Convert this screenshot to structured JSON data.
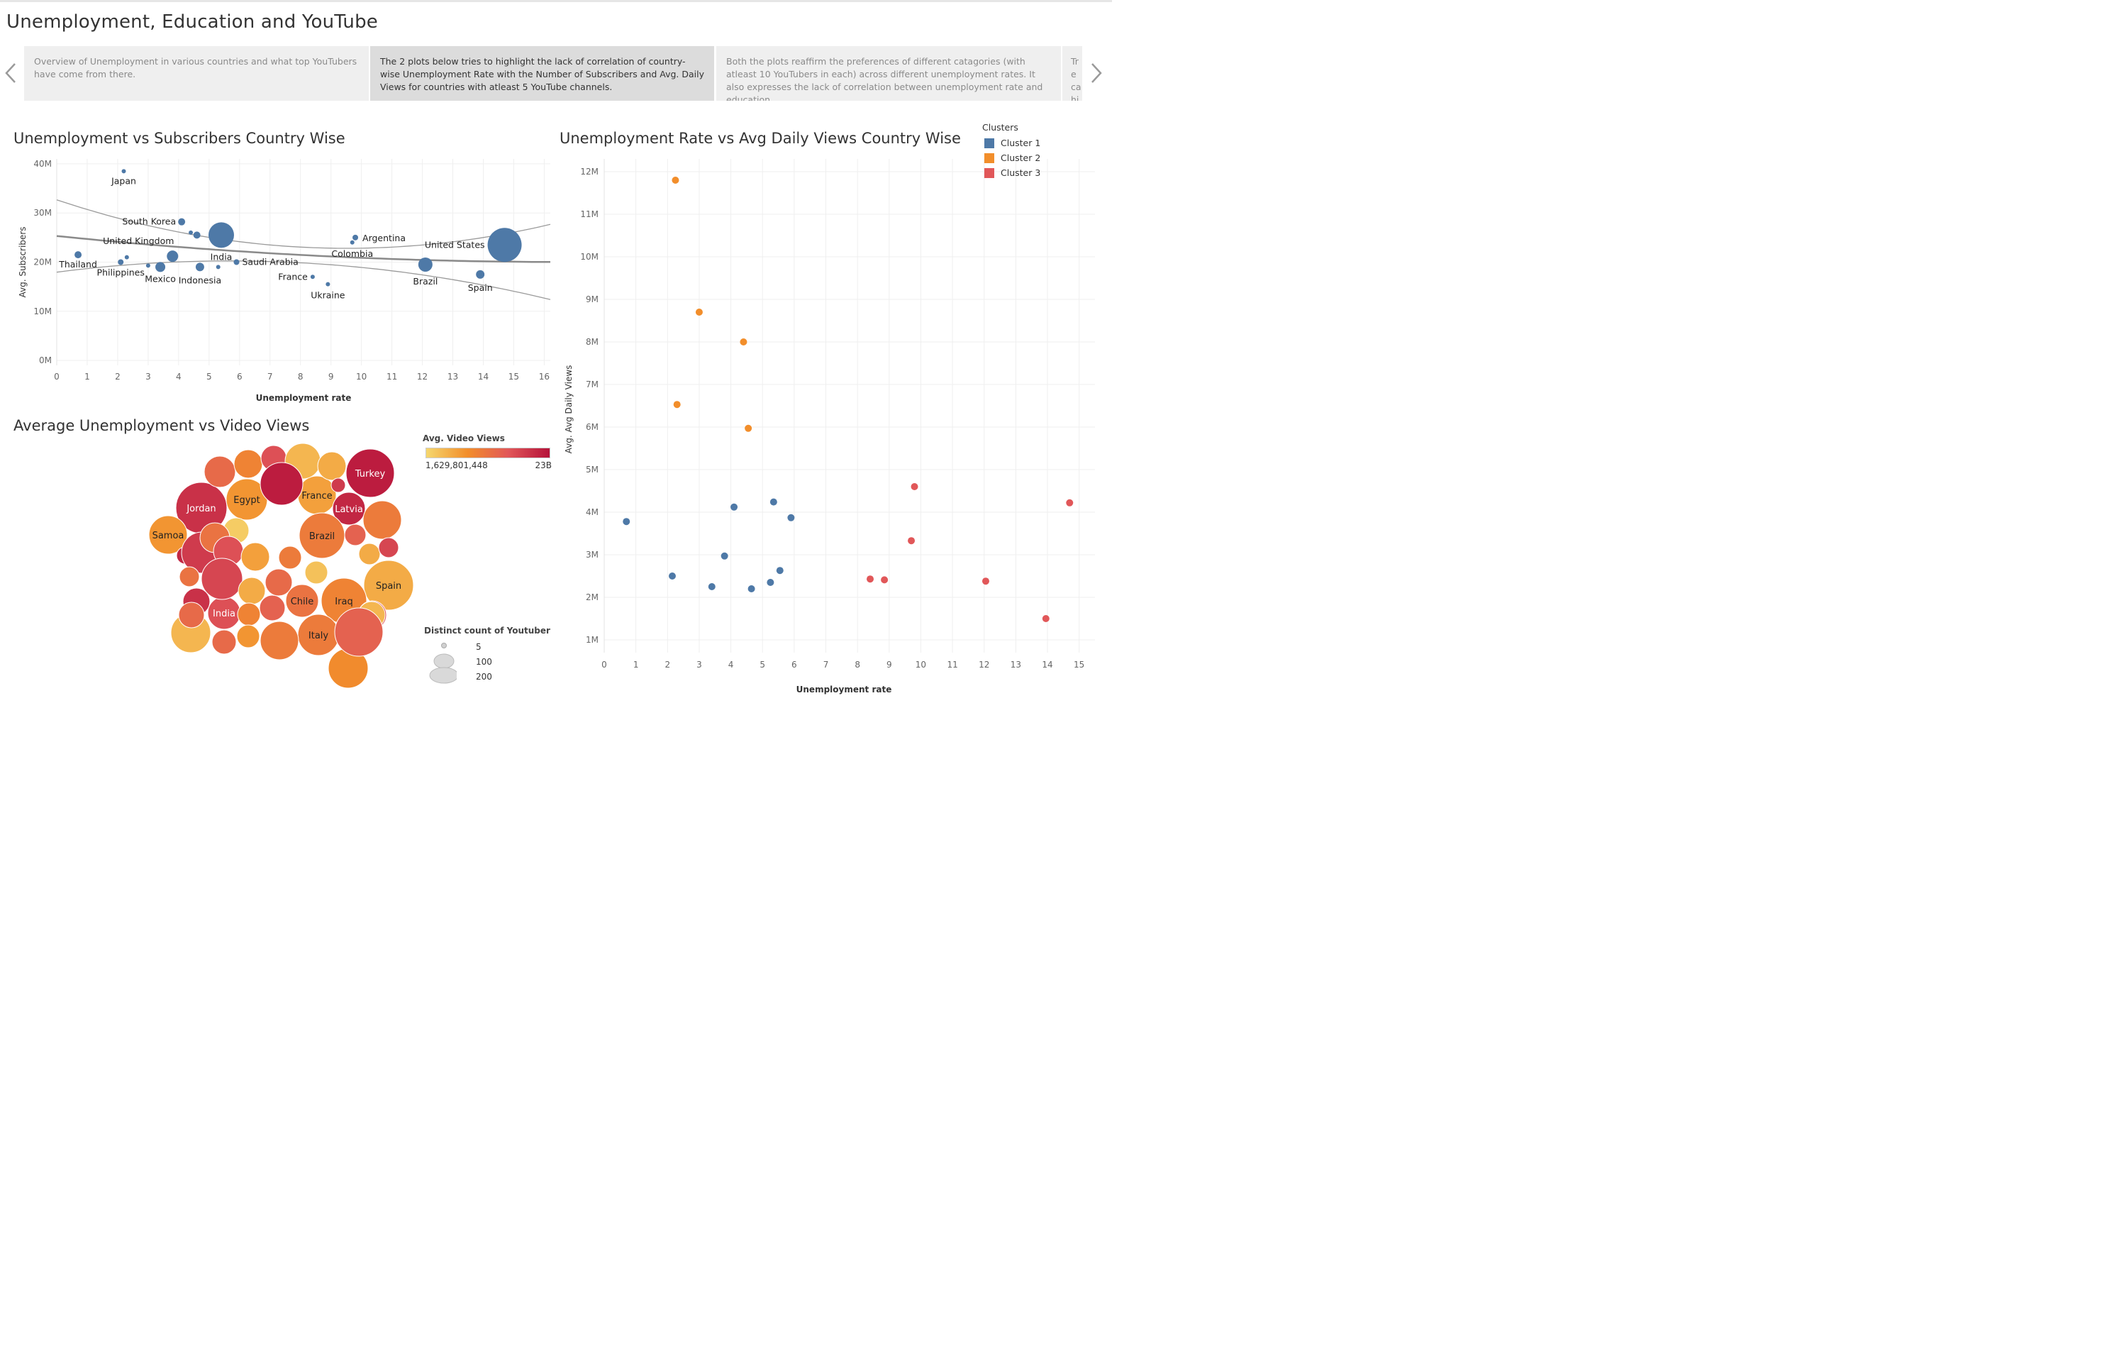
{
  "page": {
    "title": "Unemployment, Education and YouTube"
  },
  "story_points": [
    "Overview of Unemployment in various countries and what top YouTubers have come from there.",
    "The 2 plots below tries to highlight the lack of correlation of country-wise Unemployment Rate with the Number of Subscribers and Avg. Daily Views for countries with atleast 5 YouTube channels.",
    "Both the plots reaffirm the preferences of different catagories (with atleast 10 YouTubers in each)  across different unemployment rates. It also expresses the lack of correlation between unemployment rate and education",
    "Tre ca hig"
  ],
  "legends": {
    "clusters_title": "Clusters",
    "clusters": [
      {
        "label": "Cluster 1",
        "color": "#4e79a7"
      },
      {
        "label": "Cluster 2",
        "color": "#f28e2b"
      },
      {
        "label": "Cluster 3",
        "color": "#e15759"
      }
    ],
    "video_views_title": "Avg. Video Views",
    "video_views_min": "1,629,801,448",
    "video_views_max": "23B",
    "size_title": "Distinct count of Youtuber",
    "size_values": [
      "5",
      "100",
      "200"
    ]
  },
  "chart_data": [
    {
      "type": "scatter",
      "title": "Unemployment vs Subscribers Country Wise",
      "xlabel": "Unemployment rate",
      "ylabel": "Avg. Subscribers",
      "xlim": [
        0,
        16.2
      ],
      "ylim": [
        -1,
        41
      ],
      "x_ticks": [
        "0",
        "1",
        "2",
        "3",
        "4",
        "5",
        "6",
        "7",
        "8",
        "9",
        "10",
        "11",
        "12",
        "13",
        "14",
        "15",
        "16"
      ],
      "y_ticks": [
        "0M",
        "10M",
        "20M",
        "30M",
        "40M"
      ],
      "point_color": "#4e79a7",
      "trend_line": {
        "intercept": 25.3,
        "slope": -0.33
      },
      "points": [
        {
          "x": 0.7,
          "y": 21.5,
          "s": 5,
          "label": "Thailand"
        },
        {
          "x": 2.2,
          "y": 38.5,
          "s": 3,
          "label": "Japan"
        },
        {
          "x": 2.3,
          "y": 21.0,
          "s": 3,
          "label": ""
        },
        {
          "x": 2.1,
          "y": 20.0,
          "s": 4,
          "label": "Philippines"
        },
        {
          "x": 3.0,
          "y": 19.3,
          "s": 3,
          "label": ""
        },
        {
          "x": 3.4,
          "y": 19.0,
          "s": 7,
          "label": "Mexico"
        },
        {
          "x": 3.8,
          "y": 21.2,
          "s": 8,
          "label": "United Kingdom"
        },
        {
          "x": 4.1,
          "y": 28.2,
          "s": 5,
          "label": "South Korea"
        },
        {
          "x": 4.4,
          "y": 26.0,
          "s": 3,
          "label": ""
        },
        {
          "x": 4.6,
          "y": 25.5,
          "s": 5,
          "label": ""
        },
        {
          "x": 4.7,
          "y": 19.0,
          "s": 6,
          "label": "Indonesia"
        },
        {
          "x": 5.3,
          "y": 19.0,
          "s": 3,
          "label": ""
        },
        {
          "x": 5.4,
          "y": 25.5,
          "s": 18,
          "label": "India"
        },
        {
          "x": 5.9,
          "y": 20.0,
          "s": 4,
          "label": "Saudi Arabia"
        },
        {
          "x": 8.4,
          "y": 17.0,
          "s": 3,
          "label": "France"
        },
        {
          "x": 8.9,
          "y": 15.5,
          "s": 3,
          "label": "Ukraine"
        },
        {
          "x": 9.7,
          "y": 24.0,
          "s": 3,
          "label": "Colombia"
        },
        {
          "x": 9.8,
          "y": 25.0,
          "s": 4,
          "label": "Argentina"
        },
        {
          "x": 12.1,
          "y": 19.5,
          "s": 10,
          "label": "Brazil"
        },
        {
          "x": 13.9,
          "y": 17.5,
          "s": 6,
          "label": "Spain"
        },
        {
          "x": 14.7,
          "y": 23.5,
          "s": 24,
          "label": "United States"
        }
      ]
    },
    {
      "type": "scatter",
      "title": "Unemployment Rate vs Avg Daily Views Country Wise",
      "xlabel": "Unemployment rate",
      "ylabel": "Avg. Avg Daily Views",
      "xlim": [
        0,
        15.5
      ],
      "ylim": [
        0.7,
        12.3
      ],
      "x_ticks": [
        "0",
        "1",
        "2",
        "3",
        "4",
        "5",
        "6",
        "7",
        "8",
        "9",
        "10",
        "11",
        "12",
        "13",
        "14",
        "15"
      ],
      "y_ticks": [
        "1M",
        "2M",
        "3M",
        "4M",
        "5M",
        "6M",
        "7M",
        "8M",
        "9M",
        "10M",
        "11M",
        "12M"
      ],
      "points": [
        {
          "x": 0.7,
          "y": 3.78,
          "cluster": 1
        },
        {
          "x": 2.15,
          "y": 2.5,
          "cluster": 1
        },
        {
          "x": 3.4,
          "y": 2.25,
          "cluster": 1
        },
        {
          "x": 3.8,
          "y": 2.97,
          "cluster": 1
        },
        {
          "x": 4.1,
          "y": 4.12,
          "cluster": 1
        },
        {
          "x": 4.65,
          "y": 2.2,
          "cluster": 1
        },
        {
          "x": 5.25,
          "y": 2.35,
          "cluster": 1
        },
        {
          "x": 5.35,
          "y": 4.24,
          "cluster": 1
        },
        {
          "x": 5.55,
          "y": 2.63,
          "cluster": 1
        },
        {
          "x": 5.9,
          "y": 3.87,
          "cluster": 1
        },
        {
          "x": 2.25,
          "y": 11.8,
          "cluster": 2
        },
        {
          "x": 2.3,
          "y": 6.53,
          "cluster": 2
        },
        {
          "x": 3.0,
          "y": 8.7,
          "cluster": 2
        },
        {
          "x": 4.4,
          "y": 8.0,
          "cluster": 2
        },
        {
          "x": 4.55,
          "y": 5.97,
          "cluster": 2
        },
        {
          "x": 8.4,
          "y": 2.43,
          "cluster": 3
        },
        {
          "x": 8.85,
          "y": 2.41,
          "cluster": 3
        },
        {
          "x": 9.7,
          "y": 3.33,
          "cluster": 3
        },
        {
          "x": 9.8,
          "y": 4.6,
          "cluster": 3
        },
        {
          "x": 12.05,
          "y": 2.38,
          "cluster": 3
        },
        {
          "x": 13.95,
          "y": 1.5,
          "cluster": 3
        },
        {
          "x": 14.7,
          "y": 4.22,
          "cluster": 3
        }
      ]
    },
    {
      "type": "bubble",
      "title": "Average Unemployment vs Video Views",
      "color_range": [
        "#f5d76e",
        "#b5123a"
      ],
      "bubbles": [
        {
          "label": "Turkey",
          "v": 0.95,
          "r": 34
        },
        {
          "label": "Jordan",
          "v": 0.85,
          "r": 36
        },
        {
          "label": "Egypt",
          "v": 0.3,
          "r": 29
        },
        {
          "label": "France",
          "v": 0.25,
          "r": 27
        },
        {
          "label": "Latvia",
          "v": 0.9,
          "r": 23
        },
        {
          "label": "Samoa",
          "v": 0.3,
          "r": 27
        },
        {
          "label": "Brazil",
          "v": 0.45,
          "r": 32
        },
        {
          "label": "Spain",
          "v": 0.2,
          "r": 35
        },
        {
          "label": "Chile",
          "v": 0.5,
          "r": 23
        },
        {
          "label": "Iraq",
          "v": 0.4,
          "r": 32
        },
        {
          "label": "India",
          "v": 0.7,
          "r": 23
        },
        {
          "label": "Italy",
          "v": 0.45,
          "r": 29
        },
        {
          "label": "",
          "v": 0.55,
          "r": 22
        },
        {
          "label": "",
          "v": 0.4,
          "r": 20
        },
        {
          "label": "",
          "v": 0.7,
          "r": 18
        },
        {
          "label": "",
          "v": 0.15,
          "r": 25
        },
        {
          "label": "",
          "v": 0.2,
          "r": 20
        },
        {
          "label": "",
          "v": 0.8,
          "r": 10
        },
        {
          "label": "",
          "v": 0.95,
          "r": 30
        },
        {
          "label": "",
          "v": 0.05,
          "r": 18
        },
        {
          "label": "",
          "v": 0.45,
          "r": 27
        },
        {
          "label": "",
          "v": 0.6,
          "r": 15
        },
        {
          "label": "",
          "v": 0.2,
          "r": 15
        },
        {
          "label": "",
          "v": 0.75,
          "r": 14
        },
        {
          "label": "",
          "v": 0.9,
          "r": 12
        },
        {
          "label": "",
          "v": 0.8,
          "r": 29
        },
        {
          "label": "",
          "v": 0.5,
          "r": 21
        },
        {
          "label": "",
          "v": 0.7,
          "r": 21
        },
        {
          "label": "",
          "v": 0.25,
          "r": 20
        },
        {
          "label": "",
          "v": 0.45,
          "r": 16
        },
        {
          "label": "",
          "v": 0.5,
          "r": 14
        },
        {
          "label": "",
          "v": 0.1,
          "r": 16
        },
        {
          "label": "",
          "v": 0.75,
          "r": 29
        },
        {
          "label": "",
          "v": 0.2,
          "r": 19
        },
        {
          "label": "",
          "v": 0.55,
          "r": 19
        },
        {
          "label": "",
          "v": 0.85,
          "r": 19
        },
        {
          "label": "",
          "v": 0.6,
          "r": 18
        },
        {
          "label": "",
          "v": 0.4,
          "r": 16
        },
        {
          "label": "",
          "v": 0.15,
          "r": 28
        },
        {
          "label": "",
          "v": 0.45,
          "r": 27
        },
        {
          "label": "",
          "v": 0.3,
          "r": 16
        },
        {
          "label": "",
          "v": 0.55,
          "r": 17
        },
        {
          "label": "",
          "v": 0.7,
          "r": 20
        },
        {
          "label": "",
          "v": 0.35,
          "r": 28
        },
        {
          "label": "",
          "v": 0.15,
          "r": 19
        },
        {
          "label": "",
          "v": 0.55,
          "r": 18
        },
        {
          "label": "",
          "v": 0.6,
          "r": 34
        }
      ]
    }
  ]
}
